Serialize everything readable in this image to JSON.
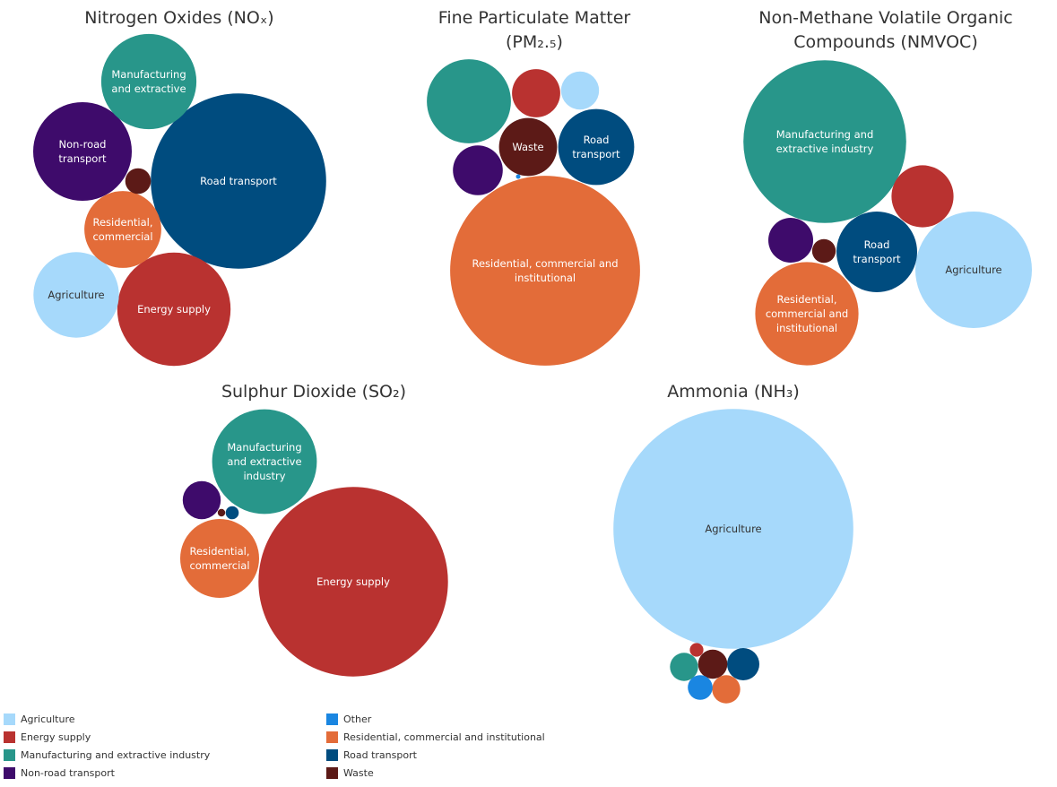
{
  "colors": {
    "Agriculture": "#a6d9fb",
    "Energy supply": "#b93230",
    "Manufacturing and extractive industry": "#28968a",
    "Non-road transport": "#3e0b6b",
    "Other": "#1a86e1",
    "Residential, commercial and institutional": "#e36c39",
    "Road transport": "#004c7f",
    "Waste": "#5c1a17"
  },
  "legend": {
    "items": [
      "Agriculture",
      "Energy supply",
      "Manufacturing and extractive industry",
      "Non-road transport",
      "Other",
      "Residential, commercial and institutional",
      "Road transport",
      "Waste"
    ]
  },
  "chart_data": [
    {
      "type": "bubble",
      "title": [
        "Nitrogen Oxides (NOₓ)"
      ],
      "series": [
        {
          "name": "Road transport",
          "value": 37.4,
          "label": [
            "Road transport"
          ]
        },
        {
          "name": "Energy supply",
          "value": 15.6,
          "label": [
            "Energy supply"
          ]
        },
        {
          "name": "Non-road transport",
          "value": 11.8,
          "label": [
            "Non-road",
            "transport"
          ]
        },
        {
          "name": "Manufacturing and extractive industry",
          "value": 11.0,
          "label": [
            "Manufacturing",
            "and extractive"
          ]
        },
        {
          "name": "Agriculture",
          "value": 8.9,
          "label": [
            "Agriculture"
          ]
        },
        {
          "name": "Residential, commercial and institutional",
          "value": 7.2,
          "label": [
            "Residential,",
            "commercial"
          ]
        },
        {
          "name": "Waste",
          "value": 0.8,
          "label": []
        }
      ]
    },
    {
      "type": "bubble",
      "title": [
        "Fine Particulate Matter",
        "(PM₂.₅)"
      ],
      "series": [
        {
          "name": "Residential, commercial and institutional",
          "value": 44.9,
          "label": [
            "Residential, commercial and",
            "institutional"
          ]
        },
        {
          "name": "Manufacturing and extractive industry",
          "value": 8.8,
          "label": []
        },
        {
          "name": "Road transport",
          "value": 7.2,
          "label": [
            "Road",
            "transport"
          ]
        },
        {
          "name": "Waste",
          "value": 4.2,
          "label": [
            "Waste"
          ]
        },
        {
          "name": "Energy supply",
          "value": 2.9,
          "label": []
        },
        {
          "name": "Non-road transport",
          "value": 3.1,
          "label": []
        },
        {
          "name": "Agriculture",
          "value": 1.8,
          "label": []
        },
        {
          "name": "Other",
          "value": 0.01,
          "label": []
        }
      ]
    },
    {
      "type": "bubble",
      "title": [
        "Non-Methane Volatile Organic",
        "Compounds (NMVOC)"
      ],
      "series": [
        {
          "name": "Manufacturing and extractive industry",
          "value": 33.0,
          "label": [
            "Manufacturing and",
            "extractive industry"
          ]
        },
        {
          "name": "Agriculture",
          "value": 16.9,
          "label": [
            "Agriculture"
          ]
        },
        {
          "name": "Residential, commercial and institutional",
          "value": 13.3,
          "label": [
            "Residential,",
            "commercial and",
            "institutional"
          ]
        },
        {
          "name": "Road transport",
          "value": 8.1,
          "label": [
            "Road",
            "transport"
          ]
        },
        {
          "name": "Energy supply",
          "value": 4.8,
          "label": []
        },
        {
          "name": "Non-road transport",
          "value": 2.5,
          "label": []
        },
        {
          "name": "Waste",
          "value": 0.7,
          "label": []
        }
      ]
    },
    {
      "type": "bubble",
      "title": [
        "Sulphur Dioxide (SO₂)"
      ],
      "series": [
        {
          "name": "Energy supply",
          "value": 62.2,
          "label": [
            "Energy supply"
          ]
        },
        {
          "name": "Manufacturing and extractive industry",
          "value": 19.0,
          "label": [
            "Manufacturing",
            "and extractive",
            "industry"
          ]
        },
        {
          "name": "Residential, commercial and institutional",
          "value": 10.8,
          "label": [
            "Residential,",
            "commercial"
          ]
        },
        {
          "name": "Non-road transport",
          "value": 2.5,
          "label": []
        },
        {
          "name": "Road transport",
          "value": 0.3,
          "label": []
        },
        {
          "name": "Waste",
          "value": 0.1,
          "label": []
        }
      ]
    },
    {
      "type": "bubble",
      "title": [
        "Ammonia (NH₃)"
      ],
      "series": [
        {
          "name": "Agriculture",
          "value": 94.0,
          "label": [
            "Agriculture"
          ]
        },
        {
          "name": "Road transport",
          "value": 1.7,
          "label": []
        },
        {
          "name": "Waste",
          "value": 1.4,
          "label": []
        },
        {
          "name": "Manufacturing and extractive industry",
          "value": 1.3,
          "label": []
        },
        {
          "name": "Residential, commercial and institutional",
          "value": 1.3,
          "label": []
        },
        {
          "name": "Other",
          "value": 1.0,
          "label": []
        },
        {
          "name": "Energy supply",
          "value": 0.3,
          "label": []
        }
      ]
    }
  ]
}
